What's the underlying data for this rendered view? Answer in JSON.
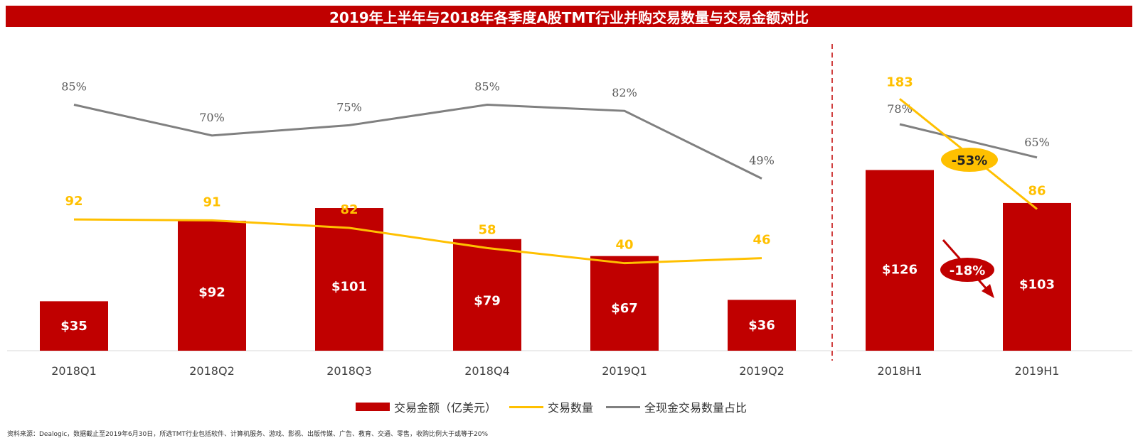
{
  "title": "2019年上半年与2018年各季度A股TMT行业并购交易数量与交易金额对比",
  "legend": {
    "amount": "交易金额（亿美元）",
    "count": "交易数量",
    "cash_ratio": "全现金交易数量占比"
  },
  "source": "资料来源：Dealogic，数据截止至2019年6月30日，所选TMT行业包括软件、计算机服务、游戏、影视、出版传媒、广告、教育、交通、零售，收购比例大于或等于20%",
  "colors": {
    "bar": "#c00000",
    "count": "#ffc000",
    "cash": "#808080"
  },
  "chart_data": [
    {
      "type": "bar",
      "categories": [
        "2018Q1",
        "2018Q2",
        "2018Q3",
        "2018Q4",
        "2019Q1",
        "2019Q2"
      ],
      "series": [
        {
          "name": "交易金额（亿美元）",
          "type": "bar",
          "values": [
            35,
            92,
            101,
            79,
            67,
            36
          ],
          "labels": [
            "$35",
            "$92",
            "$101",
            "$79",
            "$67",
            "$36"
          ]
        },
        {
          "name": "交易数量",
          "type": "line",
          "values": [
            92,
            91,
            82,
            58,
            40,
            46
          ],
          "labels": [
            "92",
            "91",
            "82",
            "58",
            "40",
            "46"
          ]
        },
        {
          "name": "全现金交易数量占比",
          "type": "line",
          "values": [
            85,
            70,
            75,
            85,
            82,
            49
          ],
          "labels": [
            "85%",
            "70%",
            "75%",
            "85%",
            "82%",
            "49%"
          ]
        }
      ]
    },
    {
      "type": "bar",
      "categories": [
        "2018H1",
        "2019H1"
      ],
      "series": [
        {
          "name": "交易金额（亿美元）",
          "type": "bar",
          "values": [
            126,
            103
          ],
          "labels": [
            "$126",
            "$103"
          ]
        },
        {
          "name": "交易数量",
          "type": "line",
          "values": [
            183,
            86
          ],
          "labels": [
            "183",
            "86"
          ]
        },
        {
          "name": "全现金交易数量占比",
          "type": "line",
          "values": [
            78,
            65
          ],
          "labels": [
            "78%",
            "65%"
          ]
        }
      ],
      "annotations": {
        "count_change": "-53%",
        "amount_change": "-18%"
      }
    }
  ]
}
